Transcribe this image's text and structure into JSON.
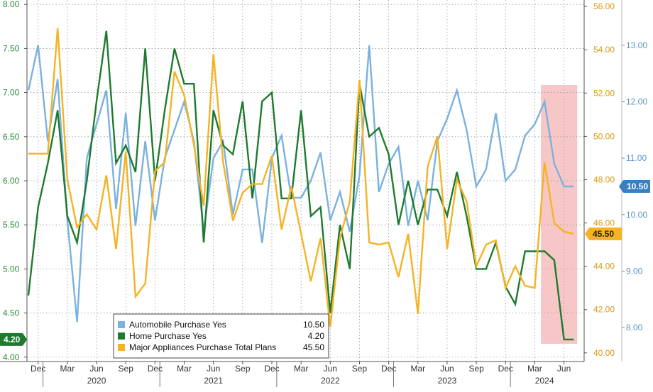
{
  "chart_data": {
    "type": "line",
    "x_tick_labels": [
      {
        "label": "Dec",
        "month": "2019-12"
      },
      {
        "label": "Mar",
        "month": "2020-03"
      },
      {
        "label": "Jun",
        "month": "2020-06"
      },
      {
        "label": "Sep",
        "month": "2020-09"
      },
      {
        "label": "Dec",
        "month": "2020-12"
      },
      {
        "label": "Mar",
        "month": "2021-03"
      },
      {
        "label": "Jun",
        "month": "2021-06"
      },
      {
        "label": "Sep",
        "month": "2021-09"
      },
      {
        "label": "Dec",
        "month": "2021-12"
      },
      {
        "label": "Mar",
        "month": "2022-03"
      },
      {
        "label": "Jun",
        "month": "2022-06"
      },
      {
        "label": "Sep",
        "month": "2022-09"
      },
      {
        "label": "Dec",
        "month": "2022-12"
      },
      {
        "label": "Mar",
        "month": "2023-03"
      },
      {
        "label": "Jun",
        "month": "2023-06"
      },
      {
        "label": "Sep",
        "month": "2023-09"
      },
      {
        "label": "Dec",
        "month": "2023-12"
      },
      {
        "label": "Mar",
        "month": "2024-03"
      },
      {
        "label": "Jun",
        "month": "2024-06"
      }
    ],
    "year_labels": [
      {
        "label": "2020",
        "month": "2020-06"
      },
      {
        "label": "2021",
        "month": "2021-06"
      },
      {
        "label": "2022",
        "month": "2022-06"
      },
      {
        "label": "2023",
        "month": "2023-06"
      },
      {
        "label": "2024",
        "month": "2024-04"
      }
    ],
    "year_boundaries": [
      "2020-01",
      "2021-01",
      "2022-01",
      "2023-01",
      "2024-01"
    ],
    "x": [
      "2019-11",
      "2019-12",
      "2020-01",
      "2020-02",
      "2020-03",
      "2020-04",
      "2020-05",
      "2020-06",
      "2020-07",
      "2020-08",
      "2020-09",
      "2020-10",
      "2020-11",
      "2020-12",
      "2021-01",
      "2021-02",
      "2021-03",
      "2021-04",
      "2021-05",
      "2021-06",
      "2021-07",
      "2021-08",
      "2021-09",
      "2021-10",
      "2021-11",
      "2021-12",
      "2022-01",
      "2022-02",
      "2022-03",
      "2022-04",
      "2022-05",
      "2022-06",
      "2022-07",
      "2022-08",
      "2022-09",
      "2022-10",
      "2022-11",
      "2022-12",
      "2023-01",
      "2023-02",
      "2023-03",
      "2023-04",
      "2023-05",
      "2023-06",
      "2023-07",
      "2023-08",
      "2023-09",
      "2023-10",
      "2023-11",
      "2023-12",
      "2024-01",
      "2024-02",
      "2024-03",
      "2024-04",
      "2024-05",
      "2024-06",
      "2024-07"
    ],
    "y_axes": {
      "left": {
        "ticks": [
          "4.00",
          "4.50",
          "5.00",
          "5.50",
          "6.00",
          "6.50",
          "7.00",
          "7.50",
          "8.00"
        ],
        "range": [
          3.95,
          8.05
        ],
        "color": "#4caf50"
      },
      "right_inner": {
        "ticks": [
          "40.00",
          "42.00",
          "44.00",
          "46.00",
          "48.00",
          "50.00",
          "52.00",
          "54.00",
          "56.00"
        ],
        "range": [
          39.6,
          56.3
        ],
        "color": "#f5b324"
      },
      "right_outer": {
        "ticks": [
          "8.00",
          "9.00",
          "10.00",
          "11.00",
          "12.00",
          "13.00"
        ],
        "range": [
          7.4,
          13.8
        ],
        "color": "#7ab1e0"
      }
    },
    "grid": true,
    "series": [
      {
        "name": "Automobile Purchase Yes",
        "axis": "right_outer",
        "color": "#7ab1e0",
        "last_value_label": "10.50",
        "values": [
          12.2,
          13.0,
          11.3,
          12.4,
          9.9,
          8.1,
          11.0,
          11.6,
          12.2,
          10.1,
          11.8,
          9.8,
          11.3,
          9.9,
          11.0,
          11.5,
          12.0,
          11.3,
          9.7,
          11.0,
          11.3,
          10.0,
          10.8,
          10.8,
          9.5,
          11.0,
          11.4,
          10.3,
          10.3,
          10.6,
          11.1,
          9.9,
          10.4,
          9.7,
          10.7,
          13.0,
          10.4,
          10.9,
          11.2,
          9.8,
          10.6,
          9.9,
          11.3,
          11.7,
          12.2,
          11.5,
          10.5,
          10.8,
          11.8,
          10.6,
          10.8,
          11.4,
          11.6,
          12.0,
          10.9,
          10.5,
          10.5
        ]
      },
      {
        "name": "Home Purchase Yes",
        "axis": "left",
        "color": "#1e7a2e",
        "last_value_label": "4.20",
        "values": [
          4.7,
          5.7,
          6.2,
          6.8,
          5.6,
          5.3,
          6.0,
          6.9,
          7.7,
          6.2,
          6.4,
          6.1,
          7.5,
          6.0,
          6.8,
          7.5,
          7.1,
          7.1,
          5.3,
          6.8,
          6.4,
          6.3,
          6.9,
          5.8,
          6.9,
          7.0,
          5.8,
          5.8,
          6.8,
          5.6,
          5.7,
          4.5,
          5.5,
          5.0,
          7.1,
          6.5,
          6.6,
          6.3,
          5.5,
          6.0,
          5.5,
          5.9,
          5.9,
          5.6,
          6.1,
          5.6,
          5.0,
          5.0,
          5.3,
          4.8,
          4.6,
          5.2,
          5.2,
          5.2,
          5.1,
          4.2,
          4.2
        ]
      },
      {
        "name": "Major Appliances Purchase Total Plans",
        "axis": "right_inner",
        "color": "#f5b324",
        "last_value_label": "45.50",
        "values": [
          49.2,
          49.2,
          49.2,
          55.0,
          48.0,
          45.8,
          46.4,
          45.7,
          48.2,
          44.8,
          49.3,
          42.6,
          43.2,
          48.4,
          48.8,
          53.0,
          51.9,
          49.6,
          46.8,
          53.8,
          48.8,
          46.1,
          47.4,
          47.8,
          47.8,
          49.1,
          45.7,
          47.7,
          45.5,
          43.3,
          45.3,
          41.2,
          45.3,
          47.0,
          52.6,
          45.1,
          45.0,
          45.1,
          43.5,
          45.5,
          41.8,
          48.6,
          50.0,
          44.8,
          48.0,
          47.0,
          44.0,
          45.0,
          45.2,
          43.0,
          44.0,
          43.1,
          43.0,
          48.8,
          46.0,
          45.6,
          45.5
        ]
      }
    ],
    "legend": {
      "placement": "bottom-left",
      "items": [
        {
          "name": "Automobile Purchase Yes",
          "value": "10.50",
          "color": "#7ab1e0"
        },
        {
          "name": "Home Purchase Yes",
          "value": "4.20",
          "color": "#1e7a2e"
        },
        {
          "name": "Major Appliances Purchase Total Plans",
          "value": "45.50",
          "color": "#f5b324"
        }
      ]
    },
    "highlight": {
      "from": "2024-04",
      "to": "2024-07",
      "color": "#f4b4b4"
    }
  }
}
